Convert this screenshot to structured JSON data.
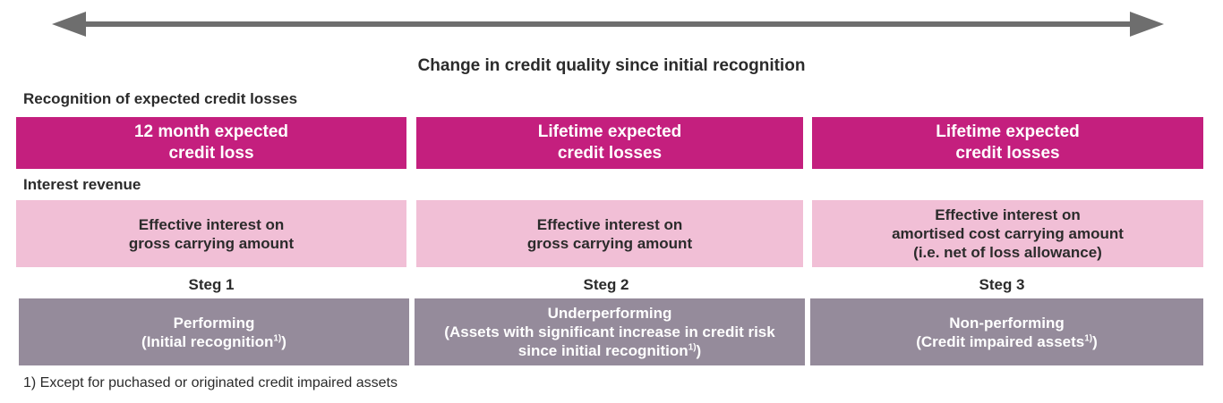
{
  "heading": "Change in credit quality since initial recognition",
  "recognition_label": "Recognition of expected credit losses",
  "interest_label": "Interest revenue",
  "ecl_boxes": [
    {
      "line1": "12 month expected",
      "line2": "credit loss"
    },
    {
      "line1": "Lifetime expected",
      "line2": "credit losses"
    },
    {
      "line1": "Lifetime expected",
      "line2": "credit losses"
    }
  ],
  "interest_boxes": [
    {
      "line1": "Effective interest on",
      "line2": "gross carrying amount",
      "line3": ""
    },
    {
      "line1": "Effective interest on",
      "line2": "gross carrying amount",
      "line3": ""
    },
    {
      "line1": "Effective interest on",
      "line2": "amortised cost carrying amount",
      "line3": "(i.e. net of loss allowance)"
    }
  ],
  "steps": [
    "Steg 1",
    "Steg 2",
    "Steg 3"
  ],
  "stage_boxes": [
    {
      "line1": "Performing",
      "line2": "(Initial recognition",
      "line2_sup": "1)",
      "line2_end": ")",
      "line3": "",
      "line3_sup": "",
      "line3_end": ""
    },
    {
      "line1": "Underperforming",
      "line2": "(Assets with significant increase in credit risk",
      "line2_sup": "",
      "line2_end": "",
      "line3": "since initial recognition",
      "line3_sup": "1)",
      "line3_end": ")"
    },
    {
      "line1": "Non-performing",
      "line2": "(Credit impaired assets",
      "line2_sup": "1)",
      "line2_end": ")",
      "line3": "",
      "line3_sup": "",
      "line3_end": ""
    }
  ],
  "footnote": "1) Except for puchased or originated credit impaired assets",
  "colors": {
    "magenta": "#c41f7e",
    "pink": "#f1bfd6",
    "grey": "#958b9b",
    "arrow": "#6e6e6e"
  }
}
